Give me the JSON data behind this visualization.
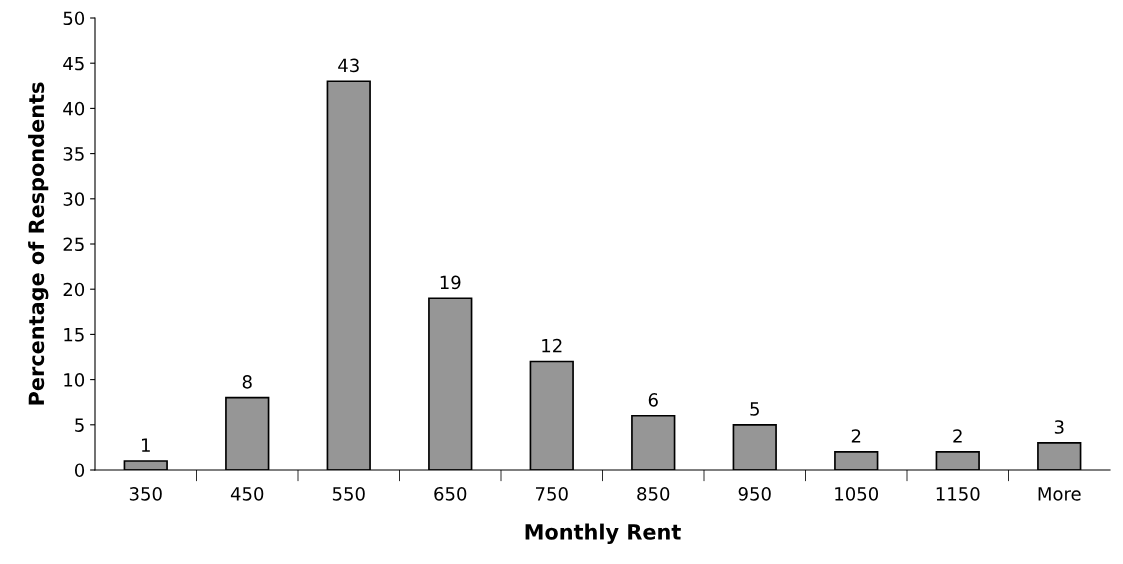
{
  "chart_data": {
    "type": "bar",
    "xlabel": "Monthly Rent",
    "ylabel": "Percentage of Respondents",
    "categories": [
      "350",
      "450",
      "550",
      "650",
      "750",
      "850",
      "950",
      "1050",
      "1150",
      "More"
    ],
    "values": [
      1,
      8,
      43,
      19,
      12,
      6,
      5,
      2,
      2,
      3
    ],
    "color": "#969696",
    "ylim": [
      0,
      50
    ],
    "yticks": [
      0,
      5,
      10,
      15,
      20,
      25,
      30,
      35,
      40,
      45,
      50
    ],
    "data_labels": true,
    "grid": false
  }
}
